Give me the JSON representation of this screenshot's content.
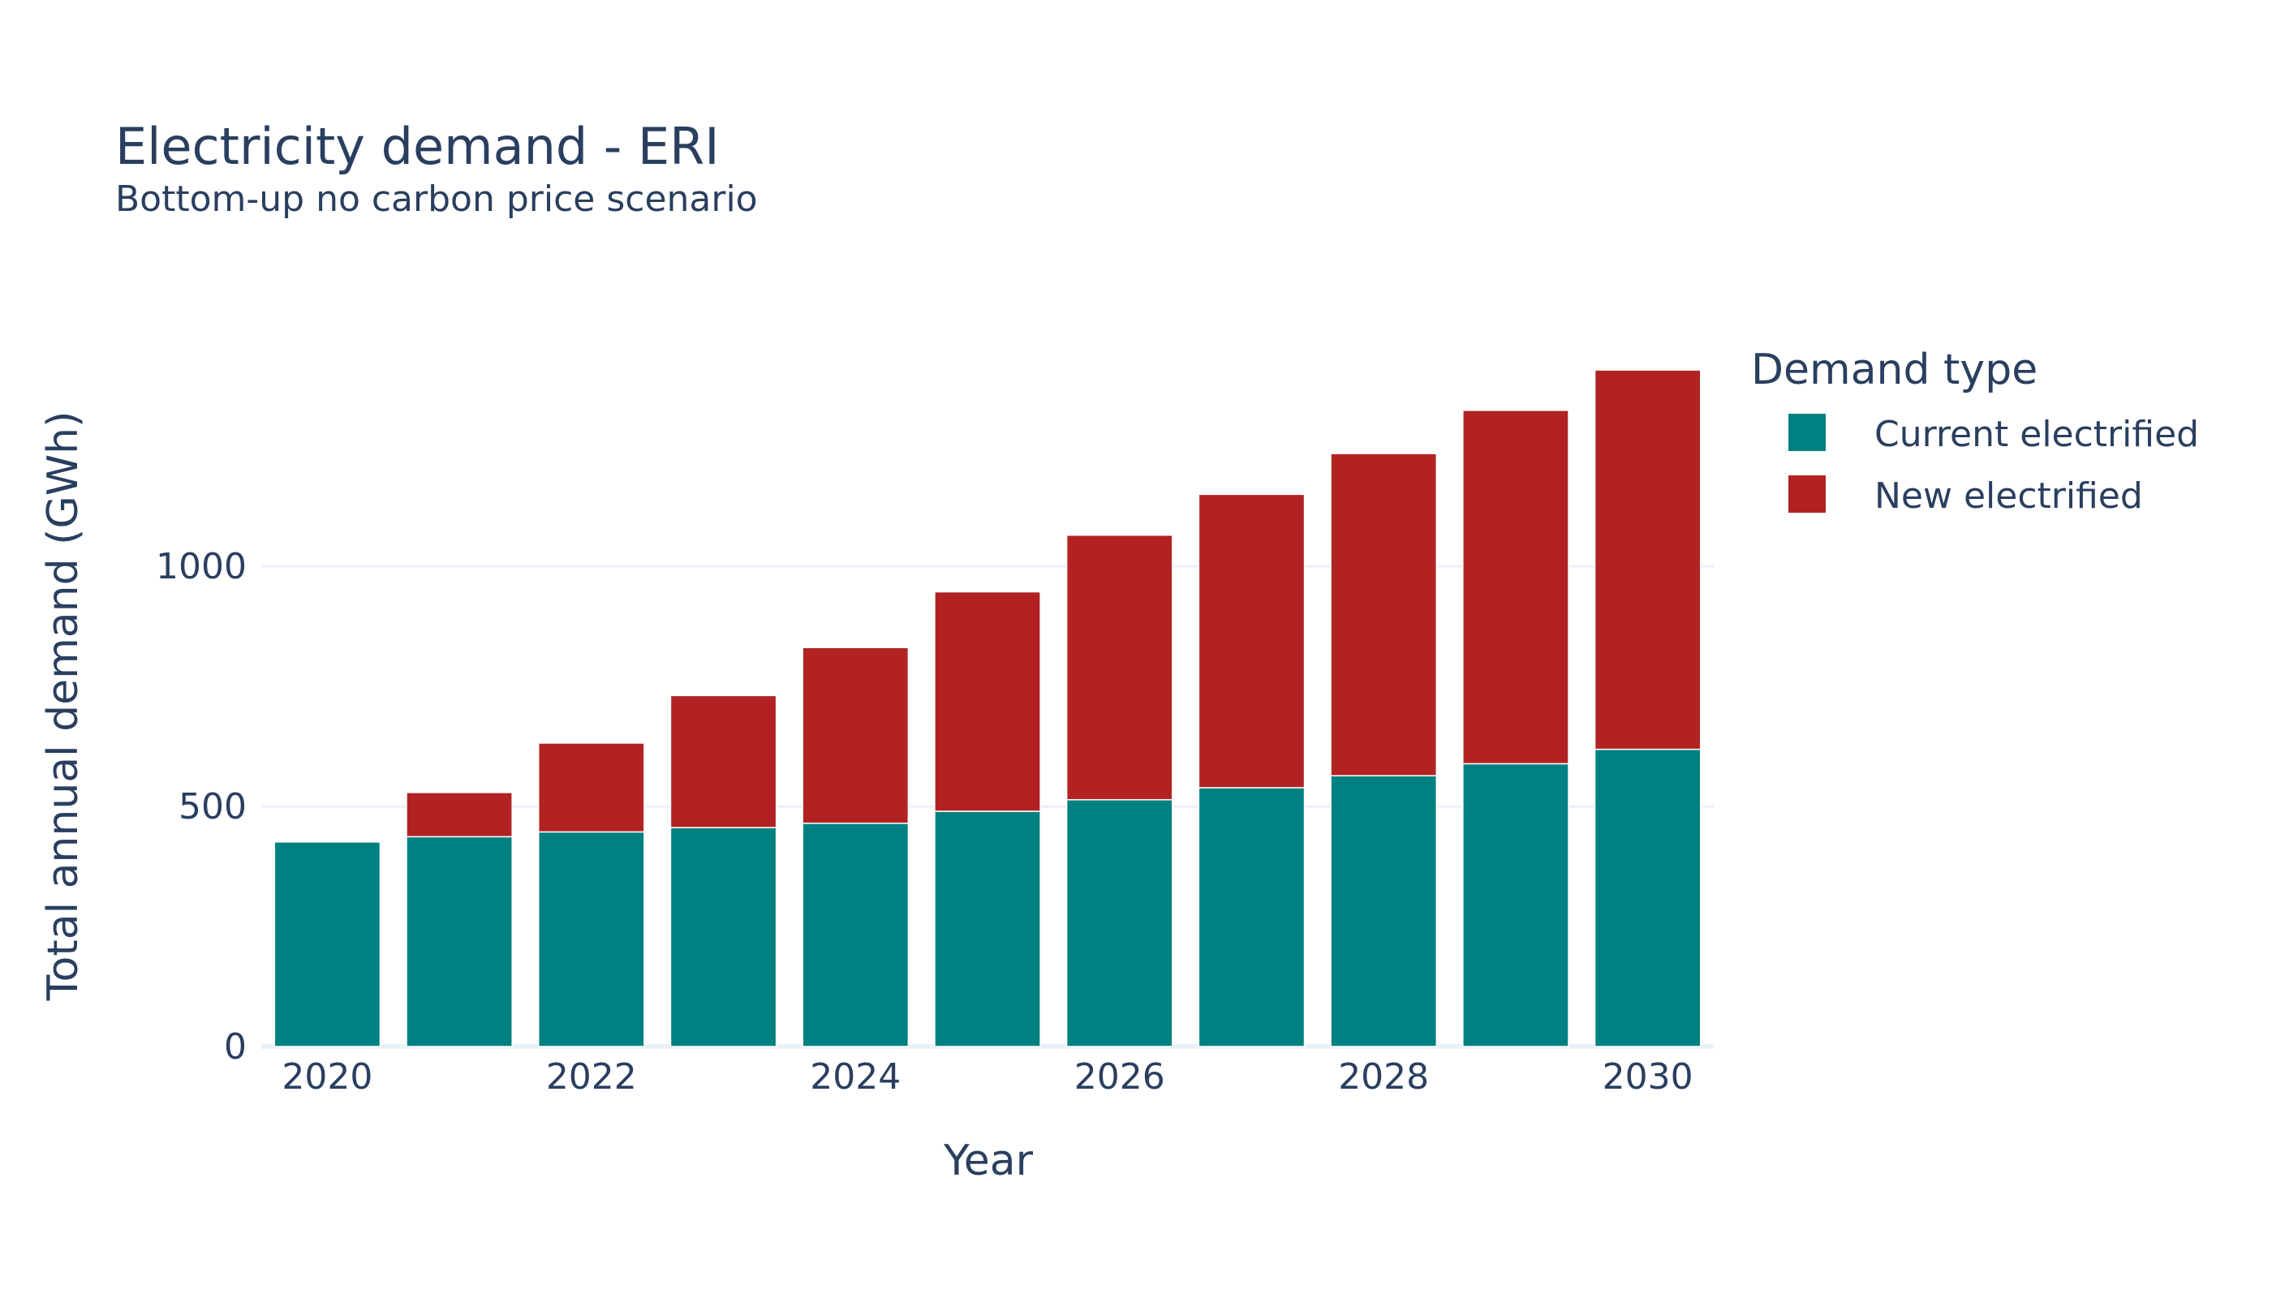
{
  "chart_data": {
    "type": "bar",
    "barmode": "stack",
    "title": "Electricity demand - ERI",
    "subtitle": "Bottom-up no carbon price scenario",
    "xlabel": "Year",
    "ylabel": "Total annual demand (GWh)",
    "x": [
      2020,
      2021,
      2022,
      2023,
      2024,
      2025,
      2026,
      2027,
      2028,
      2029,
      2030
    ],
    "x_ticks": [
      "2020",
      "2022",
      "2024",
      "2026",
      "2028",
      "2030"
    ],
    "y_ticks": [
      0,
      500,
      1000
    ],
    "ylim": [
      0,
      1470
    ],
    "grid": true,
    "legend": {
      "title": "Demand type",
      "placement": "right"
    },
    "series": [
      {
        "name": "Current electrified",
        "color": "#008080",
        "values": [
          426,
          437,
          447,
          456,
          465,
          490,
          514,
          539,
          564,
          589,
          619
        ]
      },
      {
        "name": "New electrified",
        "color": "#b22222",
        "values": [
          0,
          92,
          185,
          275,
          366,
          457,
          551,
          611,
          671,
          736,
          790
        ]
      }
    ]
  }
}
